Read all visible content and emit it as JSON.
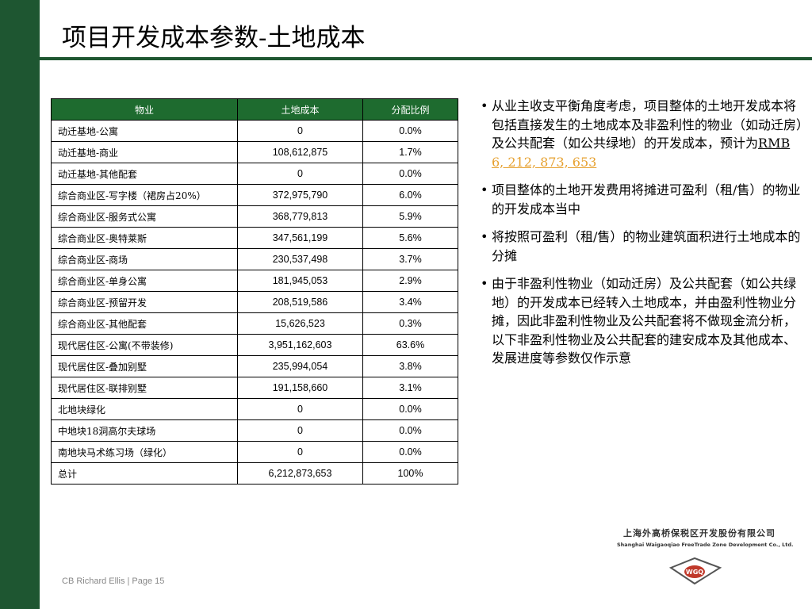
{
  "title": "项目开发成本参数-土地成本",
  "table": {
    "headers": [
      "物业",
      "土地成本",
      "分配比例"
    ],
    "rows": [
      [
        "动迁基地-公寓",
        "0",
        "0.0%"
      ],
      [
        "动迁基地-商业",
        "108,612,875",
        "1.7%"
      ],
      [
        "动迁基地-其他配套",
        "0",
        "0.0%"
      ],
      [
        "综合商业区-写字楼（裙房占20%）",
        "372,975,790",
        "6.0%"
      ],
      [
        "综合商业区-服务式公寓",
        "368,779,813",
        "5.9%"
      ],
      [
        "综合商业区-奥特莱斯",
        "347,561,199",
        "5.6%"
      ],
      [
        "综合商业区-商场",
        "230,537,498",
        "3.7%"
      ],
      [
        "综合商业区-单身公寓",
        "181,945,053",
        "2.9%"
      ],
      [
        "综合商业区-预留开发",
        "208,519,586",
        "3.4%"
      ],
      [
        "综合商业区-其他配套",
        "15,626,523",
        "0.3%"
      ],
      [
        "现代居住区-公寓(不带装修)",
        "3,951,162,603",
        "63.6%"
      ],
      [
        "现代居住区-叠加别墅",
        "235,994,054",
        "3.8%"
      ],
      [
        "现代居住区-联排别墅",
        "191,158,660",
        "3.1%"
      ],
      [
        "北地块绿化",
        "0",
        "0.0%"
      ],
      [
        "中地块18洞高尔夫球场",
        "0",
        "0.0%"
      ],
      [
        "南地块马术练习场（绿化）",
        "0",
        "0.0%"
      ],
      [
        "总计",
        "6,212,873,653",
        "100%"
      ]
    ]
  },
  "bullets": {
    "b1_text": "从业主收支平衡角度考虑，项目整体的土地开发成本将包括直接发生的土地成本及非盈利性的物业（如动迁房）及公共配套（如公共绿地）的开发成本，预计为",
    "b1_currency": "RMB",
    "b1_amount": "6, 212, 873, 653",
    "b2": "项目整体的土地开发费用将摊进可盈利（租/售）的物业的开发成本当中",
    "b3": "将按照可盈利（租/售）的物业建筑面积进行土地成本的分摊",
    "b4": "由于非盈利性物业（如动迁房）及公共配套（如公共绿地）的开发成本已经转入土地成本，并由盈利性物业分摊，因此非盈利性物业及公共配套将不做现金流分析，以下非盈利性物业及公共配套的建安成本及其他成本、发展进度等参数仅作示意",
    "dot": "•"
  },
  "logo": {
    "cn": "上海外高桥保税区开发股份有限公司",
    "en": "Shanghai Waigaoqiao FreeTrade Zone Development Co., Ltd.",
    "mark_text": "WGQ"
  },
  "footer": "CB Richard Ellis | Page 15",
  "colors": {
    "brand_green": "#1e5631",
    "header_green": "#1e6b2f",
    "highlight": "#e6a02e",
    "logo_red": "#c0392b"
  }
}
